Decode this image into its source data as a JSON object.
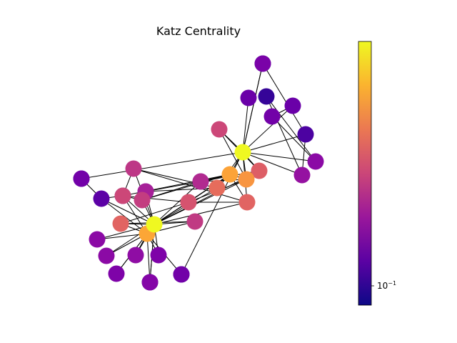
{
  "figure": {
    "title": "Katz Centrality"
  },
  "colorbar": {
    "tick_label_base": "10",
    "tick_label_exponent": "−1",
    "scale": "log",
    "colormap": [
      "#0d0887",
      "#5b02a3",
      "#9a179b",
      "#cb4678",
      "#eb7852",
      "#fbb32f",
      "#eff821"
    ]
  },
  "chart_data": {
    "type": "network",
    "title": "Katz Centrality",
    "nodes": [
      {
        "id": 0,
        "centrality": 0.95,
        "color": "#eff821"
      },
      {
        "id": 1,
        "centrality": 0.7,
        "color": "#fca636"
      },
      {
        "id": 2,
        "centrality": 0.55,
        "color": "#e16462"
      },
      {
        "id": 3,
        "centrality": 0.4,
        "color": "#cc4778"
      },
      {
        "id": 4,
        "centrality": 0.3,
        "color": "#a62098"
      },
      {
        "id": 5,
        "centrality": 0.4,
        "color": "#c33d80"
      },
      {
        "id": 6,
        "centrality": 0.28,
        "color": "#8b0aa5"
      },
      {
        "id": 7,
        "centrality": 0.25,
        "color": "#7e03a8"
      },
      {
        "id": 8,
        "centrality": 0.3,
        "color": "#8f0da4"
      },
      {
        "id": 9,
        "centrality": 0.24,
        "color": "#7e03a8"
      },
      {
        "id": 10,
        "centrality": 0.25,
        "color": "#8405a7"
      },
      {
        "id": 11,
        "centrality": 0.28,
        "color": "#8b0aa5"
      },
      {
        "id": 12,
        "centrality": 0.15,
        "color": "#5c01a6"
      },
      {
        "id": 13,
        "centrality": 0.38,
        "color": "#c03a83"
      },
      {
        "id": 14,
        "centrality": 0.48,
        "color": "#d5536f"
      },
      {
        "id": 15,
        "centrality": 0.35,
        "color": "#b12a90"
      },
      {
        "id": 16,
        "centrality": 0.58,
        "color": "#e66c5c"
      },
      {
        "id": 17,
        "centrality": 0.72,
        "color": "#fca338"
      },
      {
        "id": 18,
        "centrality": 0.55,
        "color": "#e16462"
      },
      {
        "id": 19,
        "centrality": 0.66,
        "color": "#f89540"
      },
      {
        "id": 20,
        "centrality": 0.52,
        "color": "#dd5e66"
      },
      {
        "id": 21,
        "centrality": 0.42,
        "color": "#cc4778"
      },
      {
        "id": 22,
        "centrality": 0.38,
        "color": "#bd3786"
      },
      {
        "id": 23,
        "centrality": 0.95,
        "color": "#eff821"
      },
      {
        "id": 24,
        "centrality": 0.2,
        "color": "#6a00a8"
      },
      {
        "id": 25,
        "centrality": 0.05,
        "color": "#350498"
      },
      {
        "id": 26,
        "centrality": 0.22,
        "color": "#7201a8"
      },
      {
        "id": 27,
        "centrality": 0.18,
        "color": "#6a00a8"
      },
      {
        "id": 28,
        "centrality": 0.12,
        "color": "#4c02a1"
      },
      {
        "id": 29,
        "centrality": 0.28,
        "color": "#8b0aa5"
      },
      {
        "id": 30,
        "centrality": 0.3,
        "color": "#9511a1"
      },
      {
        "id": 31,
        "centrality": 0.23,
        "color": "#7a02a8"
      },
      {
        "id": 32,
        "centrality": 0.0,
        "color": "#0d0887"
      },
      {
        "id": 33,
        "centrality": 0.1,
        "color": "#3e049c"
      },
      {
        "id": 34,
        "centrality": 0.09,
        "color": "#3b049a"
      },
      {
        "id": 35,
        "centrality": 0.22,
        "color": "#7201a8"
      },
      {
        "id": 36,
        "centrality": 0.22,
        "color": "#7201a8"
      },
      {
        "id": 37,
        "centrality": 0.22,
        "color": "#7201a8"
      },
      {
        "id": 38,
        "centrality": 0.1,
        "color": "#3e049c"
      },
      {
        "id": 39,
        "centrality": 0.2,
        "color": "#6a00a8"
      },
      {
        "id": 40,
        "centrality": 0.22,
        "color": "#7201a8"
      },
      {
        "id": 41,
        "centrality": 0.2,
        "color": "#6a00a8"
      }
    ],
    "edges": [
      [
        0,
        1
      ],
      [
        0,
        2
      ],
      [
        0,
        3
      ],
      [
        0,
        4
      ],
      [
        0,
        5
      ],
      [
        0,
        6
      ],
      [
        0,
        7
      ],
      [
        0,
        8
      ],
      [
        0,
        9
      ],
      [
        0,
        10
      ],
      [
        0,
        11
      ],
      [
        0,
        12
      ],
      [
        0,
        13
      ],
      [
        0,
        14
      ],
      [
        0,
        15
      ],
      [
        0,
        16
      ],
      [
        0,
        17
      ],
      [
        0,
        18
      ],
      [
        0,
        19
      ],
      [
        0,
        20
      ],
      [
        0,
        22
      ],
      [
        0,
        38
      ],
      [
        1,
        2
      ],
      [
        1,
        3
      ],
      [
        1,
        6
      ],
      [
        1,
        7
      ],
      [
        1,
        8
      ],
      [
        1,
        9
      ],
      [
        1,
        10
      ],
      [
        1,
        11
      ],
      [
        1,
        12
      ],
      [
        1,
        13
      ],
      [
        3,
        22
      ],
      [
        3,
        12
      ],
      [
        2,
        13
      ],
      [
        2,
        14
      ],
      [
        23,
        19
      ],
      [
        23,
        18
      ],
      [
        23,
        16
      ],
      [
        23,
        17
      ],
      [
        23,
        20
      ],
      [
        23,
        21
      ],
      [
        23,
        24
      ],
      [
        23,
        27
      ],
      [
        23,
        28
      ],
      [
        23,
        29
      ],
      [
        23,
        30
      ],
      [
        23,
        31
      ],
      [
        23,
        32
      ],
      [
        23,
        33
      ],
      [
        23,
        34
      ],
      [
        26,
        27
      ],
      [
        26,
        29
      ],
      [
        25,
        29
      ],
      [
        25,
        30
      ],
      [
        28,
        30
      ],
      [
        28,
        31
      ],
      [
        17,
        19
      ],
      [
        17,
        16
      ],
      [
        17,
        18
      ],
      [
        19,
        21
      ],
      [
        19,
        20
      ],
      [
        20,
        21
      ],
      [
        18,
        22
      ],
      [
        16,
        22
      ],
      [
        15,
        17
      ],
      [
        15,
        19
      ],
      [
        15,
        20
      ],
      [
        14,
        19
      ],
      [
        14,
        17
      ],
      [
        14,
        18
      ],
      [
        4,
        16
      ],
      [
        5,
        17
      ],
      [
        4,
        15
      ],
      [
        5,
        15
      ],
      [
        3,
        17
      ],
      [
        39,
        14
      ],
      [
        39,
        3
      ],
      [
        39,
        5
      ],
      [
        40,
        4
      ],
      [
        40,
        5
      ],
      [
        41,
        17
      ],
      [
        36,
        12
      ],
      [
        37,
        1
      ]
    ]
  }
}
